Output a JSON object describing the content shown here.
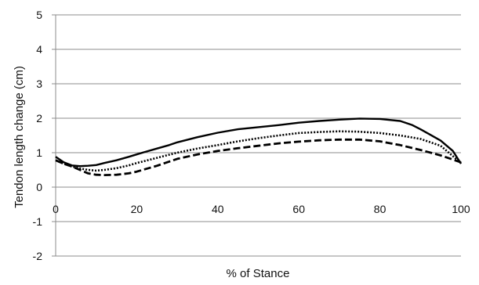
{
  "chart_data": {
    "type": "line",
    "xlabel": "% of Stance",
    "ylabel": "Tendon  length change  (cm)",
    "xlim": [
      0,
      100
    ],
    "ylim": [
      -2,
      5
    ],
    "x_ticks": [
      0,
      20,
      40,
      60,
      80,
      100
    ],
    "y_ticks": [
      -2,
      -1,
      0,
      1,
      2,
      3,
      4,
      5
    ],
    "grid": "horizontal",
    "legend": "none",
    "series": [
      {
        "style": "solid",
        "color": "#000000",
        "x": [
          0,
          2,
          4,
          6,
          8,
          10,
          12,
          15,
          18,
          20,
          22,
          25,
          28,
          30,
          35,
          40,
          45,
          50,
          55,
          60,
          65,
          70,
          75,
          80,
          85,
          88,
          90,
          92,
          95,
          98,
          100
        ],
        "y": [
          0.88,
          0.72,
          0.63,
          0.61,
          0.62,
          0.64,
          0.7,
          0.78,
          0.88,
          0.95,
          1.02,
          1.12,
          1.22,
          1.3,
          1.45,
          1.58,
          1.68,
          1.74,
          1.8,
          1.87,
          1.92,
          1.96,
          1.99,
          1.98,
          1.92,
          1.8,
          1.68,
          1.55,
          1.35,
          1.05,
          0.68
        ]
      },
      {
        "style": "dotted",
        "color": "#000000",
        "x": [
          0,
          2,
          4,
          6,
          8,
          10,
          12,
          15,
          18,
          20,
          25,
          30,
          35,
          40,
          45,
          50,
          55,
          60,
          65,
          70,
          75,
          80,
          85,
          90,
          95,
          100
        ],
        "y": [
          0.78,
          0.68,
          0.6,
          0.54,
          0.5,
          0.48,
          0.5,
          0.55,
          0.63,
          0.7,
          0.85,
          1.0,
          1.12,
          1.22,
          1.33,
          1.42,
          1.5,
          1.57,
          1.6,
          1.62,
          1.61,
          1.57,
          1.5,
          1.4,
          1.2,
          0.7
        ]
      },
      {
        "style": "dashed",
        "color": "#000000",
        "x": [
          0,
          2,
          4,
          6,
          8,
          10,
          12,
          15,
          18,
          20,
          25,
          30,
          35,
          40,
          45,
          50,
          55,
          60,
          65,
          70,
          75,
          80,
          85,
          90,
          95,
          100
        ],
        "y": [
          0.78,
          0.68,
          0.6,
          0.5,
          0.4,
          0.36,
          0.35,
          0.36,
          0.4,
          0.45,
          0.62,
          0.82,
          0.95,
          1.05,
          1.13,
          1.2,
          1.27,
          1.32,
          1.36,
          1.38,
          1.38,
          1.33,
          1.22,
          1.08,
          0.92,
          0.72
        ]
      }
    ]
  }
}
